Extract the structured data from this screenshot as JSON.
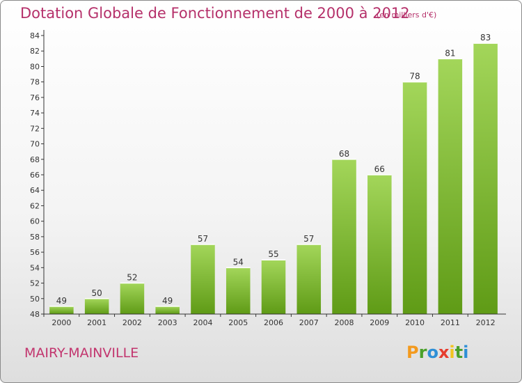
{
  "header": {
    "title": "Dotation Globale de Fonctionnement de 2000 à 2012",
    "units": "(en milliers d'€)"
  },
  "footer": {
    "town": "MAIRY-MAINVILLE",
    "logo_letters": [
      "P",
      "r",
      "o",
      "x",
      "i",
      "t",
      "i"
    ],
    "logo_colors": [
      "#f39a1e",
      "#4aa02a",
      "#2e8fd6",
      "#e63c2e",
      "#f3c41e",
      "#4aa02a",
      "#2e8fd6"
    ]
  },
  "colors": {
    "bar_light": "#a3d65a",
    "bar_dark": "#5f9b16",
    "axis": "#333333",
    "grid": "#c8c8c8"
  },
  "chart_data": {
    "type": "bar",
    "categories": [
      "2000",
      "2001",
      "2002",
      "2003",
      "2004",
      "2005",
      "2006",
      "2007",
      "2008",
      "2009",
      "2010",
      "2011",
      "2012"
    ],
    "values": [
      49,
      50,
      52,
      49,
      57,
      54,
      55,
      57,
      68,
      66,
      78,
      81,
      83
    ],
    "title": "Dotation Globale de Fonctionnement de 2000 à 2012",
    "ylim": [
      48,
      84
    ],
    "yticks": [
      48,
      50,
      52,
      54,
      56,
      58,
      60,
      62,
      64,
      66,
      68,
      70,
      72,
      74,
      76,
      78,
      80,
      82,
      84
    ],
    "grid": false
  }
}
